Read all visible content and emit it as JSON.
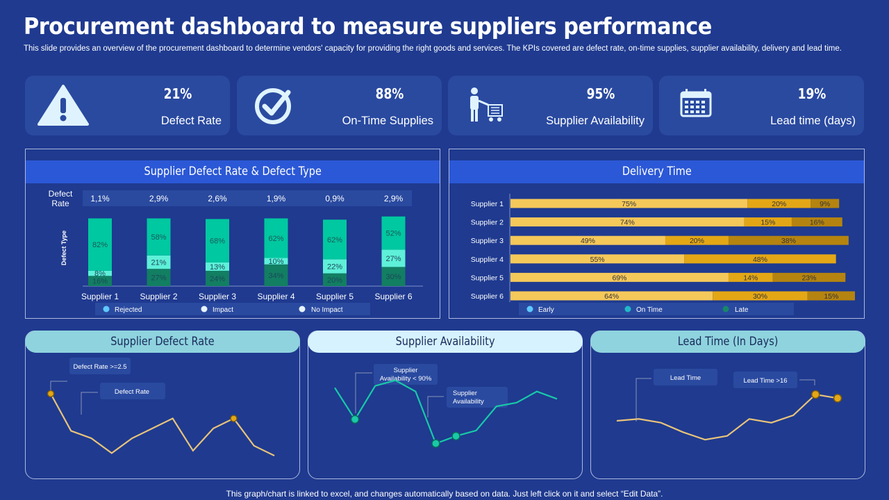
{
  "title": "Procurement dashboard to measure suppliers performance",
  "subtitle": "This slide provides an overview of the procurement dashboard to determine vendors' capacity for providing the right goods and services. The KPIs covered are defect rate,  on-time supplies, supplier availability, delivery and lead time.",
  "kpis": [
    {
      "value": "21%",
      "label": "Defect Rate",
      "icon": "warning-icon"
    },
    {
      "value": "88%",
      "label": "On-Time Supplies",
      "icon": "check-circle-icon"
    },
    {
      "value": "95%",
      "label": "Supplier Availability",
      "icon": "worker-cart-icon"
    },
    {
      "value": "19%",
      "label": "Lead time (days)",
      "icon": "calendar-icon"
    }
  ],
  "colors": {
    "background": "#1f3a8f",
    "card": "#2a4aa0",
    "header": "#2b58d6",
    "rejected": "#1a8a6a",
    "impact": "#5ef0d8",
    "no_impact": "#00c8a0",
    "early": "#f5c85a",
    "on_time": "#e3a716",
    "late": "#b58410"
  },
  "defect_panel": {
    "title": "Supplier  Defect Rate  & Defect Type",
    "defect_rate_label": "Defect Rate",
    "y_label": "Defect Type",
    "legend": [
      "Rejected",
      "Impact",
      "No Impact"
    ]
  },
  "delivery_panel": {
    "title": "Delivery  Time",
    "legend": [
      "Early",
      "On Time",
      "Late"
    ]
  },
  "cards": {
    "defect": {
      "title": "Supplier  Defect  Rate",
      "callouts": [
        "Defect Rate >=2.5",
        "Defect Rate"
      ]
    },
    "availability": {
      "title": "Supplier  Availability",
      "callouts": [
        "Supplier Availability < 90%",
        "Supplier Availability"
      ]
    },
    "lead": {
      "title": "Lead Time  (In Days)",
      "callouts": [
        "Lead Time",
        "Lead Time >16"
      ]
    }
  },
  "chart_data": [
    {
      "type": "bar",
      "title": "Supplier Defect Rate & Defect Type",
      "stacked": true,
      "categories": [
        "Supplier 1",
        "Supplier 2",
        "Supplier 3",
        "Supplier 4",
        "Supplier 5",
        "Supplier 6"
      ],
      "defect_rates": [
        "1,1%",
        "2,9%",
        "2,6%",
        "1,9%",
        "0,9%",
        "2,9%"
      ],
      "series": [
        {
          "name": "Rejected",
          "values": [
            16,
            27,
            24,
            34,
            20,
            30
          ]
        },
        {
          "name": "Impact",
          "values": [
            8,
            21,
            13,
            10,
            22,
            27
          ]
        },
        {
          "name": "No Impact",
          "values": [
            82,
            58,
            68,
            62,
            62,
            52
          ]
        }
      ],
      "ylabel": "Defect Type"
    },
    {
      "type": "bar",
      "orientation": "horizontal",
      "stacked": true,
      "title": "Delivery Time",
      "categories": [
        "Supplier 1",
        "Supplier 2",
        "Supplier 3",
        "Supplier 4",
        "Supplier 5",
        "Supplier 6"
      ],
      "series": [
        {
          "name": "Early",
          "values": [
            75,
            74,
            49,
            55,
            69,
            64
          ]
        },
        {
          "name": "On Time",
          "values": [
            20,
            15,
            20,
            48,
            14,
            30
          ]
        },
        {
          "name": "Late",
          "values": [
            9,
            16,
            38,
            0,
            23,
            15
          ]
        }
      ]
    },
    {
      "type": "line",
      "title": "Supplier Defect Rate",
      "values": [
        3.0,
        1.5,
        1.2,
        0.6,
        1.2,
        1.6,
        2.0,
        0.7,
        1.6,
        2.0,
        0.9,
        0.5
      ],
      "highlight_indices": [
        0,
        9
      ],
      "ylim": [
        0,
        3.5
      ]
    },
    {
      "type": "line",
      "title": "Supplier Availability",
      "values": [
        3.2,
        1.5,
        3.3,
        3.6,
        3.0,
        0.2,
        0.6,
        0.9,
        2.2,
        2.4,
        3.0,
        2.6
      ],
      "highlight_indices": [
        1,
        5,
        6
      ],
      "ylim": [
        0,
        4
      ]
    },
    {
      "type": "line",
      "title": "Lead Time (In Days)",
      "values": [
        0.9,
        1.0,
        0.8,
        0.3,
        -0.1,
        0.1,
        1.0,
        0.8,
        1.2,
        2.3,
        2.1
      ],
      "highlight_indices": [
        9,
        10
      ],
      "ylim": [
        -0.5,
        3
      ]
    }
  ],
  "footer": "This graph/chart is linked to excel,  and changes automatically based on data. Just left click on it and select “Edit Data”."
}
